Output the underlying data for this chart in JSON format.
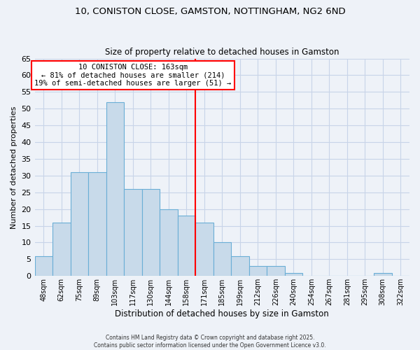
{
  "title": "10, CONISTON CLOSE, GAMSTON, NOTTINGHAM, NG2 6ND",
  "subtitle": "Size of property relative to detached houses in Gamston",
  "xlabel": "Distribution of detached houses by size in Gamston",
  "ylabel": "Number of detached properties",
  "bin_labels": [
    "48sqm",
    "62sqm",
    "75sqm",
    "89sqm",
    "103sqm",
    "117sqm",
    "130sqm",
    "144sqm",
    "158sqm",
    "171sqm",
    "185sqm",
    "199sqm",
    "212sqm",
    "226sqm",
    "240sqm",
    "254sqm",
    "267sqm",
    "281sqm",
    "295sqm",
    "308sqm",
    "322sqm"
  ],
  "bar_heights": [
    6,
    16,
    31,
    31,
    52,
    26,
    26,
    20,
    18,
    16,
    10,
    6,
    3,
    3,
    1,
    0,
    0,
    0,
    0,
    1,
    0
  ],
  "bar_color": "#c8daea",
  "bar_edgecolor": "#6aaed6",
  "bar_linewidth": 0.8,
  "grid_color": "#c8d4e8",
  "background_color": "#eef2f8",
  "vline_x": 8.5,
  "vline_color": "red",
  "vline_linewidth": 1.5,
  "ylim": [
    0,
    65
  ],
  "yticks": [
    0,
    5,
    10,
    15,
    20,
    25,
    30,
    35,
    40,
    45,
    50,
    55,
    60,
    65
  ],
  "annotation_title": "10 CONISTON CLOSE: 163sqm",
  "annotation_line1": "← 81% of detached houses are smaller (214)",
  "annotation_line2": "19% of semi-detached houses are larger (51) →",
  "annotation_box_edgecolor": "red",
  "annotation_box_facecolor": "white",
  "footer1": "Contains HM Land Registry data © Crown copyright and database right 2025.",
  "footer2": "Contains public sector information licensed under the Open Government Licence v3.0."
}
